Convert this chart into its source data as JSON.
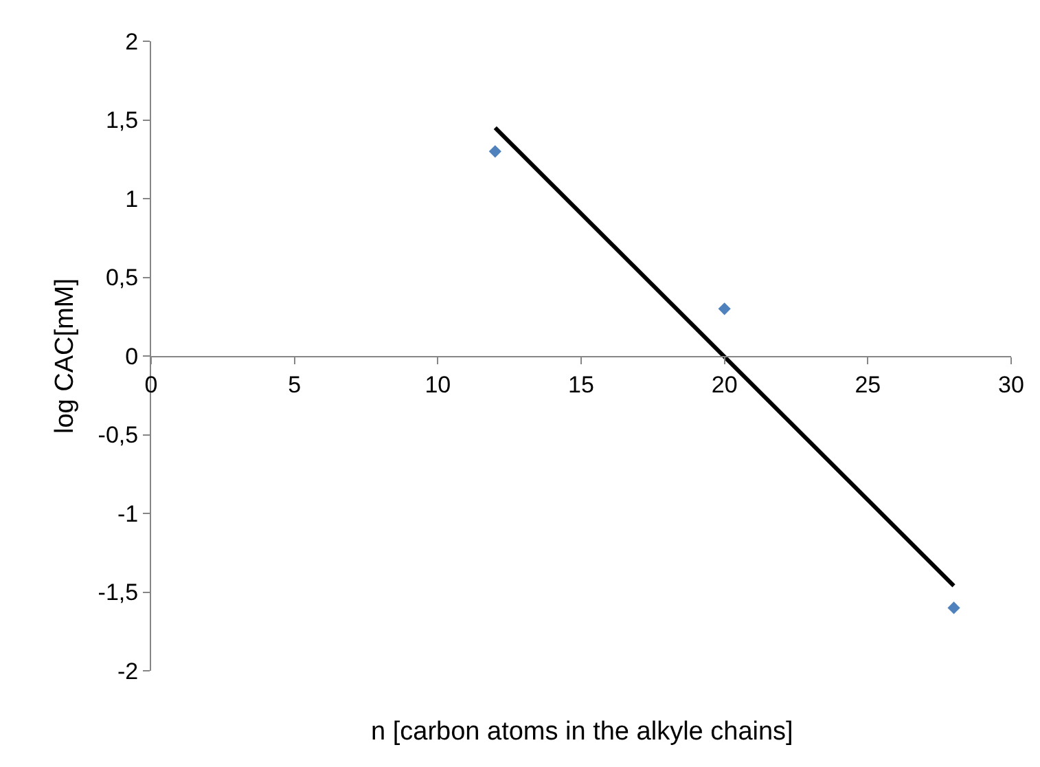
{
  "chart_data": {
    "type": "scatter",
    "xlabel": "n [carbon atoms in the alkyle chains]",
    "ylabel": "log CAC[mM]",
    "xlim": [
      0,
      30
    ],
    "xticks": [
      0,
      5,
      10,
      15,
      20,
      25,
      30
    ],
    "ylim": [
      -2,
      2
    ],
    "yticks": [
      {
        "value": -2,
        "label": "-2"
      },
      {
        "value": -1.5,
        "label": "-1,5"
      },
      {
        "value": -1,
        "label": "-1"
      },
      {
        "value": -0.5,
        "label": "-0,5"
      },
      0,
      {
        "value": 0.5,
        "label": "0,5"
      },
      1,
      {
        "value": 1.5,
        "label": "1,5"
      },
      2
    ],
    "grid": false,
    "series": [
      {
        "x": [
          12,
          20,
          28
        ],
        "values": [
          1.3,
          0.3,
          -1.6
        ],
        "color": "#4f81bd",
        "marker": "diamond"
      },
      {
        "type": "line",
        "x": [
          12,
          28
        ],
        "values": [
          1.45,
          -1.46
        ],
        "color": "#000000",
        "line_style": "solid",
        "marker": "none"
      }
    ]
  }
}
